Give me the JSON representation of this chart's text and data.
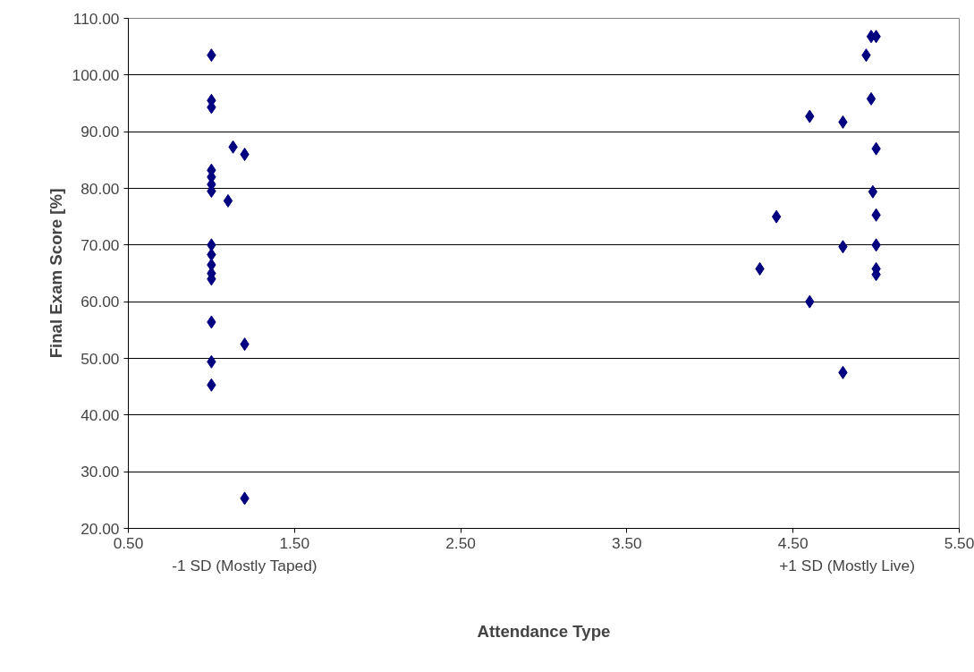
{
  "chart_data": {
    "type": "scatter",
    "xlabel": "Attendance Type",
    "ylabel": "Final Exam Score [%]",
    "annotations": [
      "-1 SD (Mostly Taped)",
      "+1 SD (Mostly Live)"
    ],
    "x": [
      1.0,
      1.0,
      1.0,
      1.0,
      1.0,
      1.0,
      1.0,
      1.0,
      1.0,
      1.0,
      1.0,
      1.0,
      1.0,
      1.0,
      1.0,
      1.13,
      1.2,
      1.1,
      1.2,
      1.2,
      4.97,
      5.0,
      4.94,
      4.97,
      4.6,
      4.8,
      5.0,
      4.4,
      4.98,
      5.0,
      5.0,
      4.8,
      4.3,
      5.0,
      5.0,
      4.6,
      4.8
    ],
    "series": [
      {
        "color": "#000080",
        "values": [
          103.5,
          95.5,
          94.3,
          83.2,
          82.0,
          80.7,
          79.5,
          70.0,
          68.3,
          66.5,
          65.0,
          64.0,
          56.4,
          49.4,
          45.3,
          87.3,
          86.0,
          77.8,
          52.5,
          25.3,
          106.8,
          106.8,
          103.5,
          95.8,
          92.7,
          91.7,
          87.0,
          75.0,
          79.4,
          75.3,
          70.0,
          69.7,
          65.8,
          65.8,
          64.8,
          60.0,
          47.5
        ]
      }
    ],
    "xlim": [
      0.5,
      5.5
    ],
    "ylim": [
      20,
      110
    ],
    "xticks": [
      {
        "value": 0.5,
        "label": "0.50"
      },
      {
        "value": 1.5,
        "label": "1.50"
      },
      {
        "value": 2.5,
        "label": "2.50"
      },
      {
        "value": 3.5,
        "label": "3.50"
      },
      {
        "value": 4.5,
        "label": "4.50"
      },
      {
        "value": 5.5,
        "label": "5.50"
      }
    ],
    "yticks": [
      {
        "value": 20,
        "label": "20.00"
      },
      {
        "value": 30,
        "label": "30.00"
      },
      {
        "value": 40,
        "label": "40.00"
      },
      {
        "value": 50,
        "label": "50.00"
      },
      {
        "value": 60,
        "label": "60.00"
      },
      {
        "value": 70,
        "label": "70.00"
      },
      {
        "value": 80,
        "label": "80.00"
      },
      {
        "value": 90,
        "label": "90.00"
      },
      {
        "value": 100,
        "label": "100.00"
      },
      {
        "value": 110,
        "label": "110.00"
      }
    ],
    "grid": "y",
    "marker": "diamond"
  }
}
